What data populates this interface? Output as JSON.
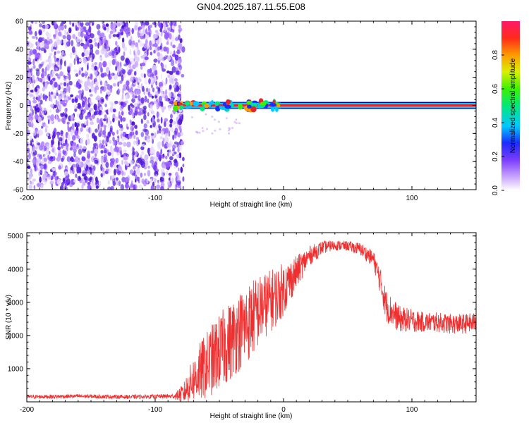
{
  "title": "GN04.2025.187.11.55.E08",
  "colors": {
    "noise_purple": "#7a3cff",
    "ridge_red": "#e3262b",
    "snr_line": "#ef2f2f",
    "axis": "#000000"
  },
  "chart_data": [
    {
      "type": "heatmap",
      "xlabel": "Height of straight line (km)",
      "ylabel": "Frequency (Hz)",
      "xlim": [
        -200,
        150
      ],
      "ylim": [
        -60,
        60
      ],
      "xticks": [
        -200,
        -100,
        0,
        100
      ],
      "xtick_labels": [
        "-200",
        "-100",
        "0",
        "100"
      ],
      "yticks": [
        -60,
        -40,
        -20,
        0,
        20,
        40,
        60
      ],
      "ytick_labels": [
        "-60",
        "-40",
        "-20",
        "0",
        "20",
        "40",
        "60"
      ],
      "noise_region_x": [
        -200,
        -78
      ],
      "ridge": {
        "x_start": -85,
        "x_end": 150,
        "frequency": 0
      },
      "colorbar": {
        "label": "Normalized spectral amplitude",
        "range": [
          0,
          1
        ],
        "ticks": [
          0.0,
          0.2,
          0.4,
          0.6,
          0.8
        ],
        "tick_labels": [
          "0.0",
          "0.2",
          "0.4",
          "0.6",
          "0.8"
        ],
        "colormap": "rainbow-white-to-magenta"
      },
      "grid": false
    },
    {
      "type": "line",
      "xlabel": "Height of straight line (km)",
      "ylabel": "SNR (10 * v/v)",
      "xlim": [
        -200,
        150
      ],
      "ylim": [
        0,
        5100
      ],
      "xticks": [
        -200,
        -100,
        0,
        100
      ],
      "xtick_labels": [
        "-200",
        "-100",
        "0",
        "100"
      ],
      "yticks": [
        1000,
        2000,
        3000,
        4000,
        5000
      ],
      "ytick_labels": [
        "1000",
        "2000",
        "3000",
        "4000",
        "5000"
      ],
      "grid": false,
      "series": [
        {
          "x": [
            -200,
            -180,
            -160,
            -140,
            -120,
            -100,
            -85,
            -78,
            -72,
            -65,
            -55,
            -45,
            -35,
            -25,
            -15,
            -5,
            0,
            10,
            20,
            30,
            40,
            50,
            60,
            70,
            75,
            80,
            90,
            100,
            110,
            120,
            130,
            140,
            150
          ],
          "y": [
            150,
            160,
            170,
            160,
            150,
            160,
            170,
            250,
            600,
            900,
            1300,
            1700,
            2100,
            2500,
            2900,
            3200,
            3400,
            3900,
            4400,
            4650,
            4720,
            4700,
            4600,
            4300,
            3700,
            2900,
            2500,
            2450,
            2400,
            2400,
            2350,
            2350,
            2400
          ],
          "spread": [
            60,
            60,
            60,
            60,
            60,
            60,
            80,
            300,
            600,
            900,
            1100,
            1200,
            1200,
            1200,
            1000,
            900,
            800,
            500,
            300,
            200,
            150,
            150,
            200,
            250,
            400,
            500,
            400,
            350,
            300,
            300,
            300,
            300,
            300
          ]
        }
      ]
    }
  ]
}
